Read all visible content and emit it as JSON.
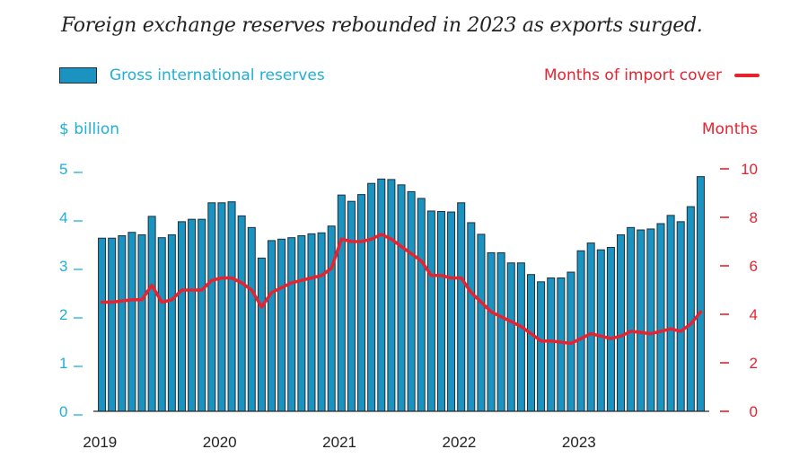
{
  "chart_data": {
    "type": "bar+line",
    "title": "Foreign exchange reserves rebounded in 2023 as exports surged.",
    "left_axis": {
      "label": "$ billion",
      "ticks": [
        "0",
        "1",
        "2",
        "3",
        "4",
        "5"
      ],
      "ylim": [
        0,
        5
      ]
    },
    "right_axis": {
      "label": "Months",
      "ticks": [
        "0",
        "2",
        "4",
        "6",
        "8",
        "10"
      ],
      "ylim": [
        0,
        10
      ]
    },
    "x_tick_labels": [
      "2019",
      "2020",
      "2021",
      "2022",
      "2023"
    ],
    "x_tick_months": [
      0,
      12,
      24,
      36,
      48
    ],
    "series": [
      {
        "name": "Gross international reserves",
        "type": "bar",
        "axis": "left",
        "color": "#1a93c0",
        "values": [
          3.57,
          3.57,
          3.62,
          3.69,
          3.64,
          4.02,
          3.58,
          3.64,
          3.91,
          3.96,
          3.96,
          4.3,
          4.3,
          4.32,
          4.03,
          3.79,
          3.16,
          3.52,
          3.55,
          3.58,
          3.62,
          3.66,
          3.68,
          3.82,
          4.46,
          4.33,
          4.47,
          4.7,
          4.79,
          4.78,
          4.67,
          4.53,
          4.39,
          4.13,
          4.12,
          4.11,
          4.3,
          3.89,
          3.65,
          3.27,
          3.27,
          3.06,
          3.06,
          2.82,
          2.67,
          2.75,
          2.75,
          2.87,
          3.31,
          3.47,
          3.33,
          3.38,
          3.64,
          3.79,
          3.74,
          3.76,
          3.87,
          4.04,
          3.91,
          4.22,
          4.84
        ]
      },
      {
        "name": "Months of import cover",
        "type": "line",
        "axis": "right",
        "color": "#e8222f",
        "values": [
          4.5,
          4.5,
          4.55,
          4.6,
          4.6,
          5.2,
          4.5,
          4.6,
          5.0,
          5.0,
          5.0,
          5.4,
          5.5,
          5.5,
          5.3,
          5.0,
          4.3,
          4.9,
          5.1,
          5.3,
          5.4,
          5.5,
          5.6,
          5.9,
          7.1,
          7.0,
          7.0,
          7.1,
          7.3,
          7.1,
          6.8,
          6.5,
          6.2,
          5.6,
          5.6,
          5.5,
          5.5,
          4.9,
          4.5,
          4.1,
          3.9,
          3.7,
          3.5,
          3.2,
          2.9,
          2.9,
          2.85,
          2.8,
          3.0,
          3.2,
          3.1,
          3.0,
          3.1,
          3.3,
          3.25,
          3.2,
          3.3,
          3.4,
          3.3,
          3.6,
          4.1
        ]
      }
    ]
  },
  "legend": {
    "bar_label": "Gross international reserves",
    "line_label": "Months of import cover"
  },
  "colors": {
    "bar": "#1a93c0",
    "line": "#e8222f",
    "left_axis": "#1fb0d8",
    "right_axis": "#e8222f"
  }
}
